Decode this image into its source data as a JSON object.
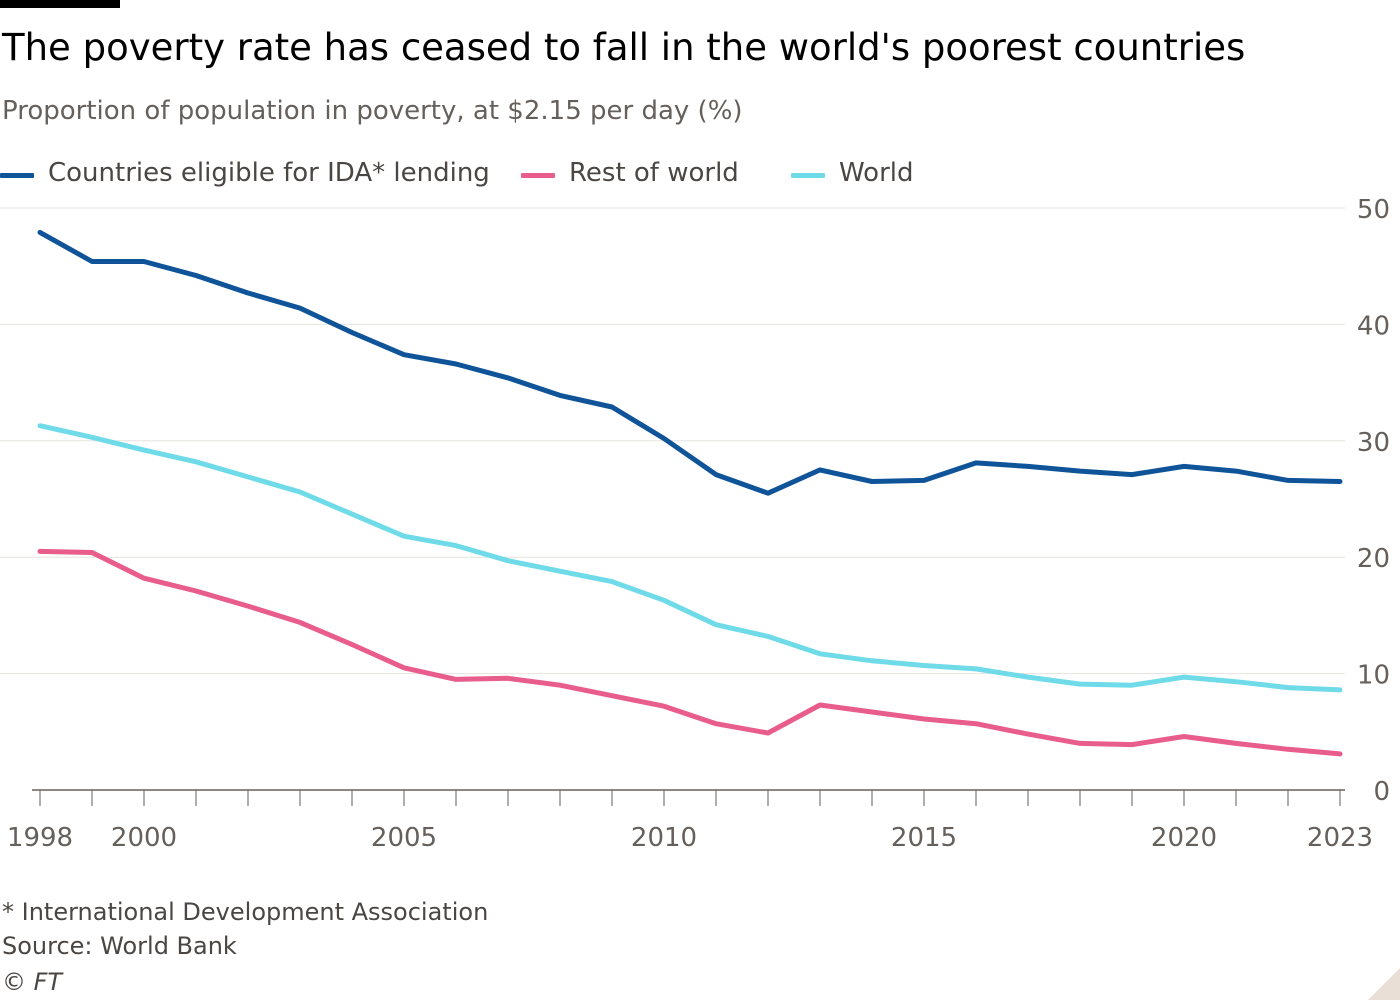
{
  "header": {
    "title": "The poverty rate has ceased to fall in the world's poorest countries",
    "subtitle": "Proportion of population in poverty, at $2.15 per day (%)"
  },
  "colors": {
    "ida": "#0f5499",
    "rest": "#e95d8c",
    "world": "#6fdbe8",
    "grid": "#e6e3df",
    "axis_text": "#66605c",
    "axis_line": "#66605c"
  },
  "chart_data": {
    "type": "line",
    "title": "The poverty rate has ceased to fall in the world's poorest countries",
    "subtitle": "Proportion of population in poverty, at $2.15 per day (%)",
    "xlabel": "",
    "ylabel": "",
    "x": [
      1998,
      1999,
      2000,
      2001,
      2002,
      2003,
      2004,
      2005,
      2006,
      2007,
      2008,
      2009,
      2010,
      2011,
      2012,
      2013,
      2014,
      2015,
      2016,
      2017,
      2018,
      2019,
      2020,
      2021,
      2022,
      2023
    ],
    "xlim": [
      1998,
      2023
    ],
    "ylim": [
      0,
      50
    ],
    "yticks": [
      0,
      10,
      20,
      30,
      40,
      50
    ],
    "xtick_labels": [
      "1998",
      "2000",
      "2005",
      "2010",
      "2015",
      "2020",
      "2023"
    ],
    "xtick_values": [
      1998,
      2000,
      2005,
      2010,
      2015,
      2020,
      2023
    ],
    "grid": true,
    "y_axis_side": "right",
    "legend_position": "top-left",
    "series": [
      {
        "key": "ida",
        "name": "Countries eligible for IDA* lending",
        "values": [
          47.9,
          45.4,
          45.4,
          44.2,
          42.7,
          41.4,
          39.3,
          37.4,
          36.6,
          35.4,
          33.9,
          32.9,
          30.2,
          27.1,
          25.5,
          27.5,
          26.5,
          26.6,
          28.1,
          27.8,
          27.4,
          27.1,
          27.8,
          27.4,
          26.6,
          26.5
        ]
      },
      {
        "key": "rest",
        "name": "Rest of world",
        "values": [
          20.5,
          20.4,
          18.2,
          17.1,
          15.8,
          14.4,
          12.5,
          10.5,
          9.5,
          9.6,
          9.0,
          8.1,
          7.2,
          5.7,
          4.9,
          7.3,
          6.7,
          6.1,
          5.7,
          4.8,
          4.0,
          3.9,
          4.6,
          4.0,
          3.5,
          3.1
        ]
      },
      {
        "key": "world",
        "name": "World",
        "values": [
          31.3,
          30.3,
          29.2,
          28.2,
          26.9,
          25.6,
          23.7,
          21.8,
          21.0,
          19.7,
          18.8,
          17.9,
          16.3,
          14.2,
          13.2,
          11.7,
          11.1,
          10.7,
          10.4,
          9.7,
          9.1,
          9.0,
          9.7,
          9.3,
          8.8,
          8.6
        ]
      }
    ]
  },
  "footer": {
    "footnote": "* International Development Association",
    "source": "Source: World Bank",
    "credit": "© FT"
  }
}
